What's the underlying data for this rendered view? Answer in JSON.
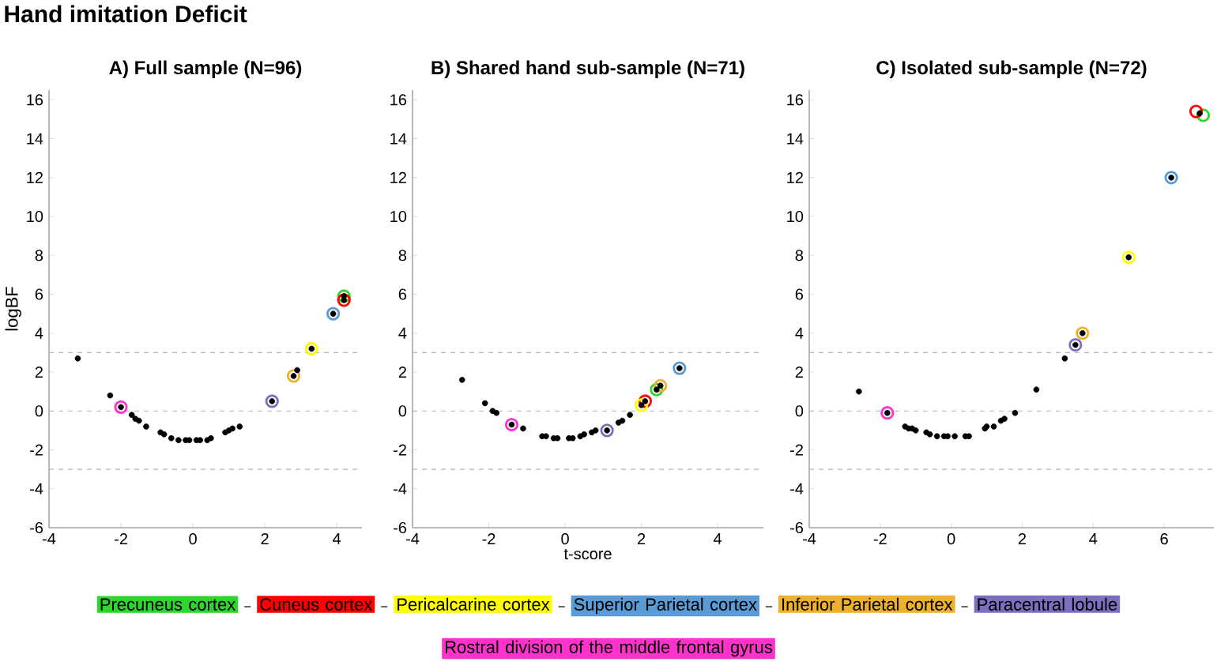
{
  "chart_data": [
    {
      "type": "scatter",
      "title": "A) Full sample (N=96)",
      "ylabel": "logBF",
      "annotations": [
        "Hand imitation Deficit"
      ],
      "legend": "bottom",
      "xlim": [
        -4,
        4.7
      ],
      "ylim": [
        -6,
        16.5
      ],
      "xticks": [
        -4,
        -2,
        0,
        2,
        4
      ],
      "yticks": [
        -6,
        -4,
        -2,
        0,
        2,
        4,
        6,
        8,
        10,
        12,
        14,
        16
      ],
      "ref_lines": [
        {
          "axis": "y",
          "value": 3,
          "color": "#b4b4b4",
          "line_style": "dashed"
        },
        {
          "axis": "y",
          "value": 0,
          "color": "#b4b4b4",
          "line_style": "dashed"
        },
        {
          "axis": "y",
          "value": -3,
          "color": "#b4b4b4",
          "line_style": "dashed"
        }
      ],
      "series": [
        {
          "name": "Precuneus cortex",
          "color": "#2ed52e",
          "marker": "circle",
          "x": [
            4.2
          ],
          "values": [
            5.9
          ]
        },
        {
          "name": "Cuneus cortex",
          "color": "#ff0000",
          "marker": "circle",
          "x": [
            4.2
          ],
          "values": [
            5.7
          ]
        },
        {
          "name": "Pericalcarine cortex",
          "color": "#ffff00",
          "marker": "circle",
          "x": [
            3.3
          ],
          "values": [
            3.2
          ]
        },
        {
          "name": "Superior Parietal cortex",
          "color": "#5b9bd5",
          "marker": "circle",
          "x": [
            3.9
          ],
          "values": [
            5.0
          ]
        },
        {
          "name": "Inferior Parietal cortex",
          "color": "#edb12e",
          "marker": "circle",
          "x": [
            2.8
          ],
          "values": [
            1.8
          ]
        },
        {
          "name": "Paracentral lobule",
          "color": "#7b6fc0",
          "marker": "circle",
          "x": [
            2.2
          ],
          "values": [
            0.5
          ]
        },
        {
          "name": "Rostral division of the middle frontal gyrus",
          "color": "#ff33cc",
          "marker": "circle",
          "x": [
            -2.0
          ],
          "values": [
            0.2
          ]
        },
        {
          "color": "#000000",
          "marker": "circle",
          "x": [
            -3.2,
            -2.3,
            -2.0,
            -1.7,
            -1.6,
            -1.5,
            -1.3,
            -0.9,
            -0.8,
            -0.6,
            -0.4,
            -0.2,
            -0.1,
            0.1,
            0.2,
            0.4,
            0.5,
            0.9,
            1.0,
            1.1,
            1.3,
            2.2,
            2.8,
            2.9,
            3.3,
            3.9,
            4.2,
            4.2
          ],
          "values": [
            2.7,
            0.8,
            0.2,
            -0.2,
            -0.4,
            -0.5,
            -0.8,
            -1.1,
            -1.2,
            -1.4,
            -1.5,
            -1.5,
            -1.5,
            -1.5,
            -1.5,
            -1.5,
            -1.4,
            -1.1,
            -1.0,
            -0.9,
            -0.8,
            0.5,
            1.8,
            2.1,
            3.2,
            5.0,
            5.7,
            5.9
          ]
        }
      ]
    },
    {
      "type": "scatter",
      "title": "B) Shared hand sub-sample (N=71)",
      "xlabel": "t-score",
      "xlim": [
        -4,
        5.2
      ],
      "ylim": [
        -6,
        16.5
      ],
      "xticks": [
        -4,
        -2,
        0,
        2,
        4
      ],
      "yticks": [
        -6,
        -4,
        -2,
        0,
        2,
        4,
        6,
        8,
        10,
        12,
        14,
        16
      ],
      "ref_lines": [
        {
          "axis": "y",
          "value": 3,
          "color": "#b4b4b4",
          "line_style": "dashed"
        },
        {
          "axis": "y",
          "value": 0,
          "color": "#b4b4b4",
          "line_style": "dashed"
        },
        {
          "axis": "y",
          "value": -3,
          "color": "#b4b4b4",
          "line_style": "dashed"
        }
      ],
      "series": [
        {
          "color": "#2ed52e",
          "marker": "circle",
          "x": [
            2.4
          ],
          "values": [
            1.1
          ]
        },
        {
          "color": "#ff0000",
          "marker": "circle",
          "x": [
            2.1
          ],
          "values": [
            0.5
          ]
        },
        {
          "color": "#ffff00",
          "marker": "circle",
          "x": [
            2.0
          ],
          "values": [
            0.3
          ]
        },
        {
          "color": "#5b9bd5",
          "marker": "circle",
          "x": [
            3.0
          ],
          "values": [
            2.2
          ]
        },
        {
          "color": "#edb12e",
          "marker": "circle",
          "x": [
            2.5
          ],
          "values": [
            1.3
          ]
        },
        {
          "color": "#7b6fc0",
          "marker": "circle",
          "x": [
            1.1
          ],
          "values": [
            -1.0
          ]
        },
        {
          "color": "#ff33cc",
          "marker": "circle",
          "x": [
            -1.4
          ],
          "values": [
            -0.7
          ]
        },
        {
          "color": "#000000",
          "marker": "circle",
          "x": [
            -2.7,
            -2.1,
            -1.9,
            -1.8,
            -1.4,
            -1.1,
            -0.6,
            -0.5,
            -0.3,
            -0.2,
            0.1,
            0.2,
            0.4,
            0.5,
            0.7,
            0.8,
            1.1,
            1.4,
            1.5,
            1.7,
            2.0,
            2.1,
            2.4,
            2.5,
            3.0
          ],
          "values": [
            1.6,
            0.4,
            0.0,
            -0.1,
            -0.7,
            -0.9,
            -1.3,
            -1.3,
            -1.4,
            -1.4,
            -1.4,
            -1.4,
            -1.3,
            -1.2,
            -1.1,
            -1.0,
            -1.0,
            -0.6,
            -0.5,
            -0.2,
            0.3,
            0.5,
            1.1,
            1.3,
            2.2
          ]
        }
      ]
    },
    {
      "type": "scatter",
      "title": "C) Isolated sub-sample (N=72)",
      "xlim": [
        -4,
        7.4
      ],
      "ylim": [
        -6,
        16.5
      ],
      "xticks": [
        -4,
        -2,
        0,
        2,
        4,
        6
      ],
      "yticks": [
        -6,
        -4,
        -2,
        0,
        2,
        4,
        6,
        8,
        10,
        12,
        14,
        16
      ],
      "ref_lines": [
        {
          "axis": "y",
          "value": 3,
          "color": "#b4b4b4",
          "line_style": "dashed"
        },
        {
          "axis": "y",
          "value": 0,
          "color": "#b4b4b4",
          "line_style": "dashed"
        },
        {
          "axis": "y",
          "value": -3,
          "color": "#b4b4b4",
          "line_style": "dashed"
        }
      ],
      "series": [
        {
          "color": "#2ed52e",
          "marker": "circle",
          "x": [
            7.1
          ],
          "values": [
            15.2
          ]
        },
        {
          "color": "#ff0000",
          "marker": "circle",
          "x": [
            6.9
          ],
          "values": [
            15.4
          ]
        },
        {
          "color": "#ffff00",
          "marker": "circle",
          "x": [
            5.0
          ],
          "values": [
            7.9
          ]
        },
        {
          "color": "#5b9bd5",
          "marker": "circle",
          "x": [
            6.2
          ],
          "values": [
            12.0
          ]
        },
        {
          "color": "#edb12e",
          "marker": "circle",
          "x": [
            3.7
          ],
          "values": [
            4.0
          ]
        },
        {
          "color": "#7b6fc0",
          "marker": "circle",
          "x": [
            3.5
          ],
          "values": [
            3.4
          ]
        },
        {
          "color": "#ff33cc",
          "marker": "circle",
          "x": [
            -1.8
          ],
          "values": [
            -0.1
          ]
        },
        {
          "color": "#000000",
          "marker": "circle",
          "x": [
            -2.6,
            -1.8,
            -1.3,
            -1.2,
            -1.1,
            -1.0,
            -0.7,
            -0.6,
            -0.4,
            -0.2,
            -0.1,
            0.1,
            0.4,
            0.5,
            0.95,
            1.0,
            1.2,
            1.4,
            1.5,
            1.8,
            2.4,
            3.2,
            3.5,
            3.7,
            5.0,
            6.2,
            7.0
          ],
          "values": [
            1.0,
            -0.1,
            -0.8,
            -0.9,
            -0.9,
            -1.0,
            -1.1,
            -1.2,
            -1.3,
            -1.3,
            -1.3,
            -1.3,
            -1.3,
            -1.3,
            -0.9,
            -0.8,
            -0.8,
            -0.5,
            -0.4,
            -0.1,
            1.1,
            2.7,
            3.4,
            4.0,
            7.9,
            12.0,
            15.3
          ]
        }
      ]
    }
  ]
}
